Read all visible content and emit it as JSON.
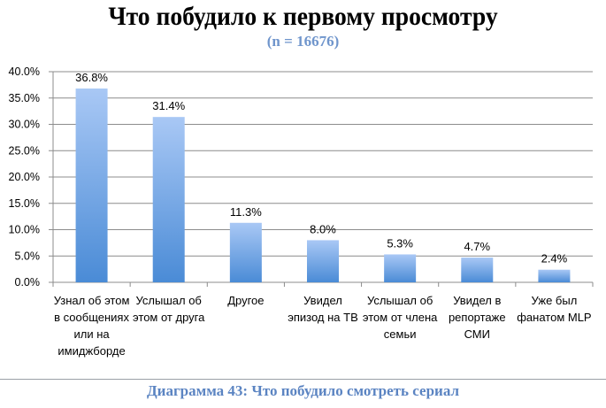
{
  "chart_data": {
    "type": "bar",
    "title": "Что побудило к первому просмотру",
    "subtitle": "(n = 16676)",
    "categories": [
      "Узнал об этом в сообщениях или на имиджборде",
      "Услышал об этом от друга",
      "Другое",
      "Увидел эпизод на ТВ",
      "Услышал об этом от члена семьи",
      "Увидел в репортаже СМИ",
      "Уже был фанатом MLP"
    ],
    "values": [
      36.8,
      31.4,
      11.3,
      8.0,
      5.3,
      4.7,
      2.4
    ],
    "data_labels": [
      "36.8%",
      "31.4%",
      "11.3%",
      "8.0%",
      "5.3%",
      "4.7%",
      "2.4%"
    ],
    "y_ticks": [
      "0.0%",
      "5.0%",
      "10.0%",
      "15.0%",
      "20.0%",
      "25.0%",
      "30.0%",
      "35.0%",
      "40.0%"
    ],
    "ylim": [
      0,
      40
    ],
    "xlabel": "",
    "ylabel": "",
    "grid": true,
    "bar_color_top": "#a9c8f5",
    "bar_color_bottom": "#4a8bd6"
  },
  "caption": "Диаграмма 43: Что побудило смотреть сериал"
}
